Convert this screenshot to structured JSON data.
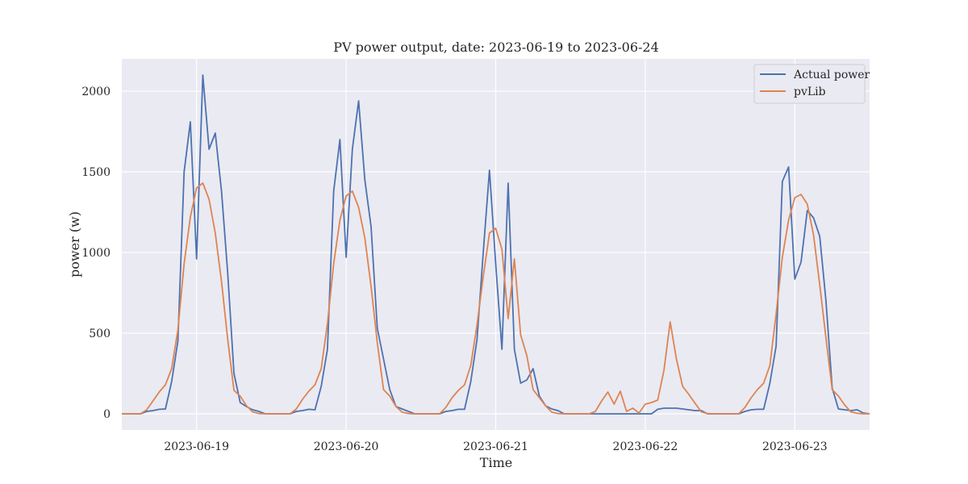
{
  "chart_data": {
    "type": "line",
    "title": "PV power output, date: 2023-06-19 to 2023-06-24",
    "xlabel": "Time",
    "ylabel": "power (w)",
    "x_start": "2023-06-18T12:00",
    "x_end": "2023-06-23T12:00",
    "ylim": [
      -100,
      2200
    ],
    "yticks": [
      0,
      500,
      1000,
      1500,
      2000
    ],
    "xticks": [
      "2023-06-19",
      "2023-06-20",
      "2023-06-21",
      "2023-06-22",
      "2023-06-23"
    ],
    "grid": true,
    "background": "#eaeaf2",
    "legend_position": "top-right",
    "series": [
      {
        "name": "Actual power",
        "color": "#4c72b0",
        "points": [
          [
            "2023-06-18T12:00",
            0
          ],
          [
            "2023-06-18T15:00",
            0
          ],
          [
            "2023-06-18T16:00",
            15
          ],
          [
            "2023-06-18T17:00",
            20
          ],
          [
            "2023-06-18T18:00",
            28
          ],
          [
            "2023-06-18T19:00",
            30
          ],
          [
            "2023-06-18T20:00",
            200
          ],
          [
            "2023-06-18T21:00",
            450
          ],
          [
            "2023-06-18T22:00",
            1500
          ],
          [
            "2023-06-18T23:00",
            1810
          ],
          [
            "2023-06-19T00:00",
            960
          ],
          [
            "2023-06-19T01:00",
            2100
          ],
          [
            "2023-06-19T02:00",
            1640
          ],
          [
            "2023-06-19T03:00",
            1740
          ],
          [
            "2023-06-19T04:00",
            1380
          ],
          [
            "2023-06-19T05:00",
            870
          ],
          [
            "2023-06-19T06:00",
            250
          ],
          [
            "2023-06-19T07:00",
            70
          ],
          [
            "2023-06-19T08:00",
            45
          ],
          [
            "2023-06-19T09:00",
            25
          ],
          [
            "2023-06-19T10:00",
            15
          ],
          [
            "2023-06-19T11:00",
            0
          ],
          [
            "2023-06-19T15:00",
            0
          ],
          [
            "2023-06-19T16:00",
            15
          ],
          [
            "2023-06-19T17:00",
            20
          ],
          [
            "2023-06-19T18:00",
            28
          ],
          [
            "2023-06-19T19:00",
            25
          ],
          [
            "2023-06-19T20:00",
            170
          ],
          [
            "2023-06-19T21:00",
            400
          ],
          [
            "2023-06-19T22:00",
            1380
          ],
          [
            "2023-06-19T23:00",
            1700
          ],
          [
            "2023-06-20T00:00",
            970
          ],
          [
            "2023-06-20T01:00",
            1640
          ],
          [
            "2023-06-20T02:00",
            1940
          ],
          [
            "2023-06-20T03:00",
            1450
          ],
          [
            "2023-06-20T04:00",
            1160
          ],
          [
            "2023-06-20T05:00",
            530
          ],
          [
            "2023-06-20T06:00",
            340
          ],
          [
            "2023-06-20T07:00",
            150
          ],
          [
            "2023-06-20T08:00",
            45
          ],
          [
            "2023-06-20T09:00",
            30
          ],
          [
            "2023-06-20T10:00",
            15
          ],
          [
            "2023-06-20T11:00",
            0
          ],
          [
            "2023-06-20T15:00",
            0
          ],
          [
            "2023-06-20T16:00",
            15
          ],
          [
            "2023-06-20T17:00",
            20
          ],
          [
            "2023-06-20T18:00",
            28
          ],
          [
            "2023-06-20T19:00",
            28
          ],
          [
            "2023-06-20T20:00",
            200
          ],
          [
            "2023-06-20T21:00",
            460
          ],
          [
            "2023-06-20T22:00",
            1000
          ],
          [
            "2023-06-20T23:00",
            1510
          ],
          [
            "2023-06-21T00:00",
            930
          ],
          [
            "2023-06-21T01:00",
            400
          ],
          [
            "2023-06-21T02:00",
            1430
          ],
          [
            "2023-06-21T03:00",
            400
          ],
          [
            "2023-06-21T04:00",
            190
          ],
          [
            "2023-06-21T05:00",
            210
          ],
          [
            "2023-06-21T06:00",
            280
          ],
          [
            "2023-06-21T07:00",
            110
          ],
          [
            "2023-06-21T08:00",
            50
          ],
          [
            "2023-06-21T09:00",
            30
          ],
          [
            "2023-06-21T10:00",
            20
          ],
          [
            "2023-06-21T11:00",
            0
          ],
          [
            "2023-06-22T01:00",
            0
          ],
          [
            "2023-06-22T02:00",
            28
          ],
          [
            "2023-06-22T03:00",
            35
          ],
          [
            "2023-06-22T04:00",
            35
          ],
          [
            "2023-06-22T05:00",
            35
          ],
          [
            "2023-06-22T06:00",
            30
          ],
          [
            "2023-06-22T07:00",
            25
          ],
          [
            "2023-06-22T08:00",
            20
          ],
          [
            "2023-06-22T09:00",
            20
          ],
          [
            "2023-06-22T10:00",
            0
          ],
          [
            "2023-06-22T15:00",
            0
          ],
          [
            "2023-06-22T16:00",
            15
          ],
          [
            "2023-06-22T17:00",
            25
          ],
          [
            "2023-06-22T18:00",
            28
          ],
          [
            "2023-06-22T19:00",
            28
          ],
          [
            "2023-06-22T20:00",
            190
          ],
          [
            "2023-06-22T21:00",
            420
          ],
          [
            "2023-06-22T22:00",
            1440
          ],
          [
            "2023-06-22T23:00",
            1530
          ],
          [
            "2023-06-23T00:00",
            835
          ],
          [
            "2023-06-23T01:00",
            940
          ],
          [
            "2023-06-23T02:00",
            1260
          ],
          [
            "2023-06-23T03:00",
            1215
          ],
          [
            "2023-06-23T04:00",
            1100
          ],
          [
            "2023-06-23T05:00",
            700
          ],
          [
            "2023-06-23T06:00",
            160
          ],
          [
            "2023-06-23T07:00",
            30
          ],
          [
            "2023-06-23T08:00",
            25
          ],
          [
            "2023-06-23T09:00",
            20
          ],
          [
            "2023-06-23T10:00",
            25
          ],
          [
            "2023-06-23T11:00",
            5
          ],
          [
            "2023-06-23T12:00",
            0
          ]
        ]
      },
      {
        "name": "pvLib",
        "color": "#dd8452",
        "points": [
          [
            "2023-06-18T12:00",
            0
          ],
          [
            "2023-06-18T15:00",
            0
          ],
          [
            "2023-06-18T16:00",
            25
          ],
          [
            "2023-06-18T17:00",
            80
          ],
          [
            "2023-06-18T18:00",
            135
          ],
          [
            "2023-06-18T19:00",
            180
          ],
          [
            "2023-06-18T20:00",
            280
          ],
          [
            "2023-06-18T21:00",
            520
          ],
          [
            "2023-06-18T22:00",
            930
          ],
          [
            "2023-06-18T23:00",
            1220
          ],
          [
            "2023-06-19T00:00",
            1400
          ],
          [
            "2023-06-19T01:00",
            1430
          ],
          [
            "2023-06-19T02:00",
            1330
          ],
          [
            "2023-06-19T03:00",
            1120
          ],
          [
            "2023-06-19T04:00",
            820
          ],
          [
            "2023-06-19T05:00",
            460
          ],
          [
            "2023-06-19T06:00",
            145
          ],
          [
            "2023-06-19T07:00",
            110
          ],
          [
            "2023-06-19T08:00",
            50
          ],
          [
            "2023-06-19T09:00",
            12
          ],
          [
            "2023-06-19T10:00",
            2
          ],
          [
            "2023-06-19T11:00",
            0
          ],
          [
            "2023-06-19T15:00",
            0
          ],
          [
            "2023-06-19T16:00",
            30
          ],
          [
            "2023-06-19T17:00",
            90
          ],
          [
            "2023-06-19T18:00",
            140
          ],
          [
            "2023-06-19T19:00",
            180
          ],
          [
            "2023-06-19T20:00",
            280
          ],
          [
            "2023-06-19T21:00",
            560
          ],
          [
            "2023-06-19T22:00",
            930
          ],
          [
            "2023-06-19T23:00",
            1200
          ],
          [
            "2023-06-20T00:00",
            1350
          ],
          [
            "2023-06-20T01:00",
            1380
          ],
          [
            "2023-06-20T02:00",
            1280
          ],
          [
            "2023-06-20T03:00",
            1090
          ],
          [
            "2023-06-20T04:00",
            790
          ],
          [
            "2023-06-20T05:00",
            440
          ],
          [
            "2023-06-20T06:00",
            150
          ],
          [
            "2023-06-20T07:00",
            110
          ],
          [
            "2023-06-20T08:00",
            45
          ],
          [
            "2023-06-20T09:00",
            10
          ],
          [
            "2023-06-20T10:00",
            2
          ],
          [
            "2023-06-20T11:00",
            0
          ],
          [
            "2023-06-20T15:00",
            0
          ],
          [
            "2023-06-20T16:00",
            40
          ],
          [
            "2023-06-20T17:00",
            100
          ],
          [
            "2023-06-20T18:00",
            145
          ],
          [
            "2023-06-20T19:00",
            180
          ],
          [
            "2023-06-20T20:00",
            300
          ],
          [
            "2023-06-20T21:00",
            550
          ],
          [
            "2023-06-20T22:00",
            850
          ],
          [
            "2023-06-20T23:00",
            1120
          ],
          [
            "2023-06-21T00:00",
            1150
          ],
          [
            "2023-06-21T01:00",
            1020
          ],
          [
            "2023-06-21T02:00",
            590
          ],
          [
            "2023-06-21T03:00",
            960
          ],
          [
            "2023-06-21T04:00",
            490
          ],
          [
            "2023-06-21T05:00",
            360
          ],
          [
            "2023-06-21T06:00",
            150
          ],
          [
            "2023-06-21T07:00",
            100
          ],
          [
            "2023-06-21T08:00",
            50
          ],
          [
            "2023-06-21T09:00",
            10
          ],
          [
            "2023-06-21T10:00",
            2
          ],
          [
            "2023-06-21T11:00",
            0
          ],
          [
            "2023-06-21T15:00",
            0
          ],
          [
            "2023-06-21T16:00",
            15
          ],
          [
            "2023-06-21T17:00",
            80
          ],
          [
            "2023-06-21T18:00",
            135
          ],
          [
            "2023-06-21T19:00",
            60
          ],
          [
            "2023-06-21T20:00",
            140
          ],
          [
            "2023-06-21T21:00",
            15
          ],
          [
            "2023-06-21T22:00",
            35
          ],
          [
            "2023-06-21T23:00",
            5
          ],
          [
            "2023-06-22T00:00",
            60
          ],
          [
            "2023-06-22T01:00",
            70
          ],
          [
            "2023-06-22T02:00",
            85
          ],
          [
            "2023-06-22T03:00",
            270
          ],
          [
            "2023-06-22T04:00",
            570
          ],
          [
            "2023-06-22T05:00",
            340
          ],
          [
            "2023-06-22T06:00",
            170
          ],
          [
            "2023-06-22T07:00",
            120
          ],
          [
            "2023-06-22T08:00",
            65
          ],
          [
            "2023-06-22T09:00",
            12
          ],
          [
            "2023-06-22T10:00",
            2
          ],
          [
            "2023-06-22T11:00",
            0
          ],
          [
            "2023-06-22T15:00",
            0
          ],
          [
            "2023-06-22T16:00",
            40
          ],
          [
            "2023-06-22T17:00",
            100
          ],
          [
            "2023-06-22T18:00",
            150
          ],
          [
            "2023-06-22T19:00",
            190
          ],
          [
            "2023-06-22T20:00",
            300
          ],
          [
            "2023-06-22T21:00",
            620
          ],
          [
            "2023-06-22T22:00",
            970
          ],
          [
            "2023-06-22T23:00",
            1200
          ],
          [
            "2023-06-23T00:00",
            1340
          ],
          [
            "2023-06-23T01:00",
            1360
          ],
          [
            "2023-06-23T02:00",
            1300
          ],
          [
            "2023-06-23T03:00",
            1110
          ],
          [
            "2023-06-23T04:00",
            800
          ],
          [
            "2023-06-23T05:00",
            470
          ],
          [
            "2023-06-23T06:00",
            150
          ],
          [
            "2023-06-23T07:00",
            110
          ],
          [
            "2023-06-23T08:00",
            55
          ],
          [
            "2023-06-23T09:00",
            12
          ],
          [
            "2023-06-23T10:00",
            3
          ],
          [
            "2023-06-23T11:00",
            0
          ],
          [
            "2023-06-23T12:00",
            0
          ]
        ]
      }
    ]
  }
}
